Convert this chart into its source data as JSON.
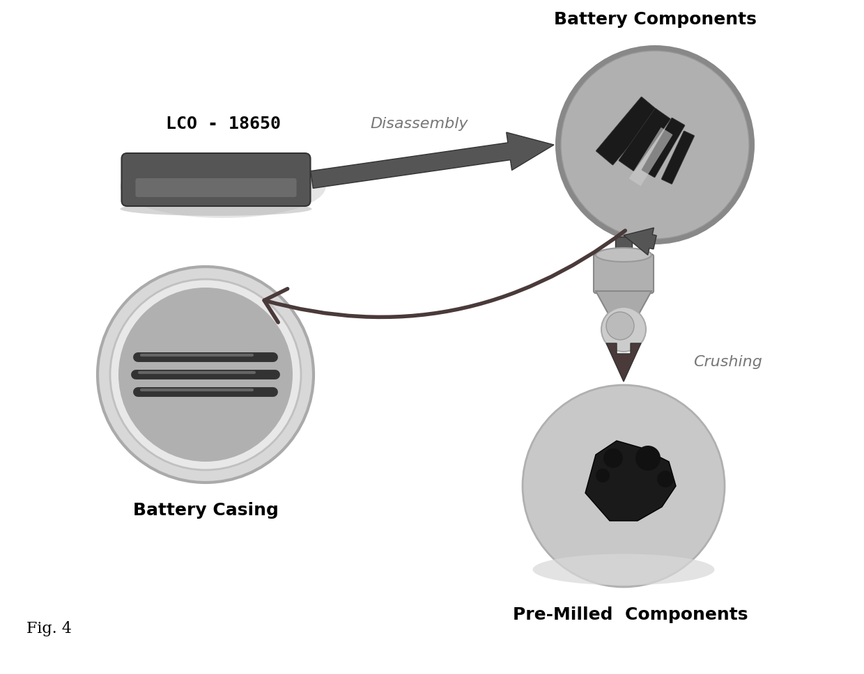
{
  "bg_color": "#ffffff",
  "label_fontsize": 15,
  "fig_label_fontsize": 14,
  "fig_label": "Fig. 4",
  "lco_label": "LCO - 18650",
  "battery_components_label": "Battery Components",
  "battery_casing_label": "Battery Casing",
  "pre_milled_label": "Pre-Milled  Components",
  "disassembly_label": "Disassembly",
  "crushing_label": "Crushing",
  "arrow_color": "#4a3a3a",
  "text_color": "#000000",
  "italic_color": "#888888",
  "battery_color": "#555555",
  "battery_shadow_color": "#aaaaaa",
  "bc_circle_color": "#b0b0b0",
  "bc_circle_edge": "#888888",
  "cas_circle_color": "#c8c8c8",
  "cas_circle_edge": "#999999",
  "pm_circle_color": "#c8c8c8",
  "pm_circle_edge": "#aaaaaa",
  "crusher_color": "#aaaaaa",
  "crusher_edge": "#777777"
}
